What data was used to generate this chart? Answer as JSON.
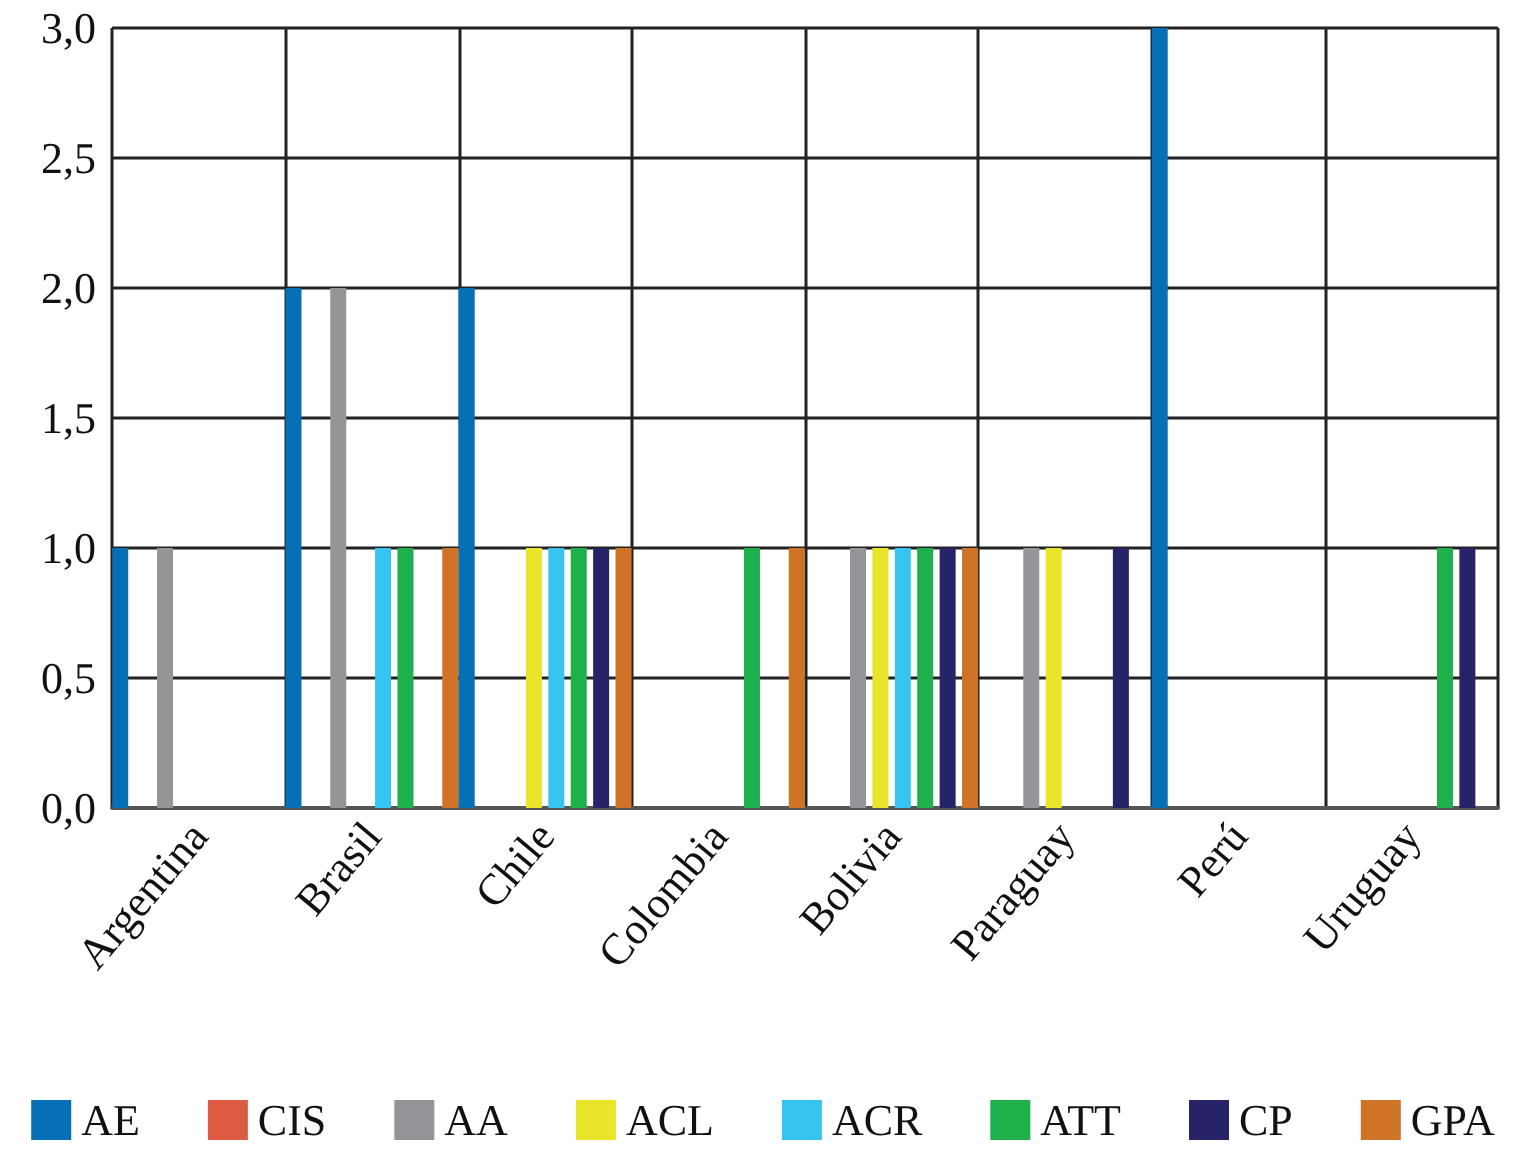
{
  "chart_data": {
    "type": "bar",
    "categories": [
      "Argentina",
      "Brasil",
      "Chile",
      "Colombia",
      "Bolivia",
      "Paraguay",
      "Perú",
      "Uruguay"
    ],
    "series": [
      {
        "name": "AE",
        "color": "#066fb5",
        "values": [
          1,
          2,
          2,
          0,
          0,
          0,
          3,
          0
        ]
      },
      {
        "name": "CIS",
        "color": "#dd5a43",
        "values": [
          0,
          0,
          0,
          0,
          0,
          0,
          0,
          0
        ]
      },
      {
        "name": "AA",
        "color": "#949598",
        "values": [
          1,
          2,
          0,
          0,
          1,
          1,
          0,
          0
        ]
      },
      {
        "name": "ACL",
        "color": "#e8e52a",
        "values": [
          0,
          0,
          1,
          0,
          1,
          1,
          0,
          0
        ]
      },
      {
        "name": "ACR",
        "color": "#38c4f1",
        "values": [
          0,
          1,
          1,
          0,
          1,
          0,
          0,
          0
        ]
      },
      {
        "name": "ATT",
        "color": "#1db04b",
        "values": [
          0,
          1,
          1,
          1,
          1,
          0,
          0,
          1
        ]
      },
      {
        "name": "CP",
        "color": "#262368",
        "values": [
          0,
          0,
          1,
          0,
          1,
          1,
          0,
          1
        ]
      },
      {
        "name": "GPA",
        "color": "#cf7327",
        "values": [
          0,
          1,
          1,
          1,
          1,
          0,
          0,
          0
        ]
      }
    ],
    "ylim": [
      0,
      3
    ],
    "yticks": [
      {
        "value": 0,
        "label": "0,0"
      },
      {
        "value": 0.5,
        "label": "0,5"
      },
      {
        "value": 1,
        "label": "1,0"
      },
      {
        "value": 1.5,
        "label": "1,5"
      },
      {
        "value": 2,
        "label": "2,0"
      },
      {
        "value": 2.5,
        "label": "2,5"
      },
      {
        "value": 3,
        "label": "3,0"
      }
    ],
    "grid": true,
    "legend": "bottom"
  }
}
